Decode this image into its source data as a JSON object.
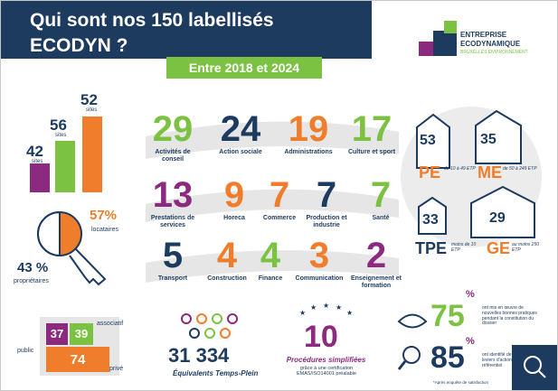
{
  "header": {
    "title_line1": "Qui sont nos 150 labellisés",
    "title_line2": "ECODYN ?",
    "period": "Entre 2018 et 2024"
  },
  "logo": {
    "line1": "ENTREPRISE",
    "line2": "ECODYNAMIQUE",
    "line3": "BRUXELLES ENVIRONNEMENT"
  },
  "sites": [
    {
      "value": "42",
      "label": "sites"
    },
    {
      "value": "56",
      "label": "sites"
    },
    {
      "value": "52",
      "label": "sites"
    }
  ],
  "sectors": [
    {
      "number": "29",
      "label": "Activités de conseil",
      "color": "#7cc242"
    },
    {
      "number": "24",
      "label": "Action sociale",
      "color": "#1d3a5f"
    },
    {
      "number": "19",
      "label": "Administrations",
      "color": "#f07d2b"
    },
    {
      "number": "17",
      "label": "Culture et sport",
      "color": "#7cc242"
    },
    {
      "number": "13",
      "label": "Prestations de services",
      "color": "#8b2a7e"
    },
    {
      "number": "9",
      "label": "Horeca",
      "color": "#f07d2b"
    },
    {
      "number": "7",
      "label": "Commerce",
      "color": "#f07d2b"
    },
    {
      "number": "7",
      "label": "Production et industrie",
      "color": "#1d3a5f"
    },
    {
      "number": "7",
      "label": "Santé",
      "color": "#7cc242"
    },
    {
      "number": "5",
      "label": "Transport",
      "color": "#1d3a5f"
    },
    {
      "number": "4",
      "label": "Construction",
      "color": "#f07d2b"
    },
    {
      "number": "4",
      "label": "Finance",
      "color": "#7cc242"
    },
    {
      "number": "3",
      "label": "Communication",
      "color": "#f07d2b"
    },
    {
      "number": "2",
      "label": "Enseignement et formation",
      "color": "#8b2a7e"
    }
  ],
  "sizes": [
    {
      "number": "53",
      "code": "PE",
      "range": "de 10 à 49 ETP"
    },
    {
      "number": "35",
      "code": "ME",
      "range": "de 50 à 249 ETP"
    },
    {
      "number": "33",
      "code": "TPE",
      "range": "moins de 10 ETP"
    },
    {
      "number": "29",
      "code": "GE",
      "range": "au moins 250 ETP"
    }
  ],
  "tenure": {
    "tenants_value": "57%",
    "tenants_label": "locataires",
    "owners_value": "43 %",
    "owners_label": "propriétaires"
  },
  "status": {
    "public_value": "37",
    "public_label": "public",
    "assoc_value": "39",
    "assoc_label": "associatif",
    "private_value": "74",
    "private_label": "privé"
  },
  "employment": {
    "value": "31 334",
    "label": "Équivalents Temps-Plein"
  },
  "procedures": {
    "value": "10",
    "label": "Procédures simplifiées",
    "note": "grâce à une certification EMAS/ISO14001 préalable"
  },
  "satisfaction": [
    {
      "value": "75",
      "unit": "%",
      "text": "ont mis en œuvre de nouvelles bonnes pratiques pendant la constitution du dossier"
    },
    {
      "value": "85",
      "unit": "%",
      "text": "ont identifié de nouveaux leviers d'action grâce au référentiel"
    }
  ],
  "footnote": "*Après enquête de satisfaction"
}
